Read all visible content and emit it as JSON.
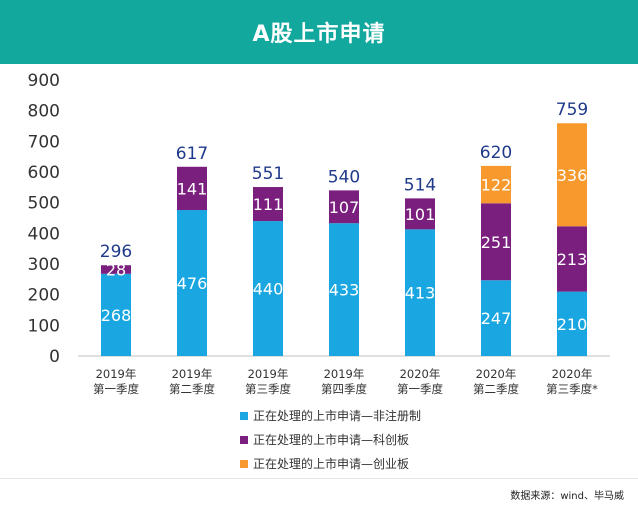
{
  "header": {
    "title": "A股上市申请"
  },
  "source": "数据来源：wind、毕马威",
  "colors": {
    "header_bg": "#13a89e",
    "series_non_registration": "#1aa7e1",
    "series_star_market": "#7b1f7f",
    "series_chinext": "#f7992d",
    "total_label": "#1f3a8a",
    "axis_text": "#333333"
  },
  "chart_data": {
    "type": "bar",
    "stacked": true,
    "title": "A股上市申请",
    "xlabel": "",
    "ylabel": "",
    "ylim": [
      0,
      900
    ],
    "yticks": [
      0,
      100,
      200,
      300,
      400,
      500,
      600,
      700,
      800,
      900
    ],
    "grid": false,
    "legend_position": "bottom",
    "categories": [
      [
        "2019年",
        "第一季度"
      ],
      [
        "2019年",
        "第二季度"
      ],
      [
        "2019年",
        "第三季度"
      ],
      [
        "2019年",
        "第四季度"
      ],
      [
        "2020年",
        "第一季度"
      ],
      [
        "2020年",
        "第二季度"
      ],
      [
        "2020年",
        "第三季度*"
      ]
    ],
    "series": [
      {
        "name": "正在处理的上市申请—非注册制",
        "values": [
          268,
          476,
          440,
          433,
          413,
          247,
          210
        ]
      },
      {
        "name": "正在处理的上市申请—科创板",
        "values": [
          28,
          141,
          111,
          107,
          101,
          251,
          213
        ]
      },
      {
        "name": "正在处理的上市申请—创业板",
        "values": [
          null,
          null,
          null,
          null,
          null,
          122,
          336
        ]
      }
    ],
    "totals": [
      296,
      617,
      551,
      540,
      514,
      620,
      759
    ]
  }
}
